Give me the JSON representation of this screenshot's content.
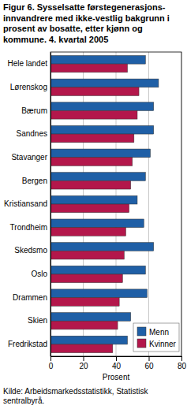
{
  "chart_data": {
    "type": "bar",
    "orientation": "horizontal",
    "title": "Figur 6. Sysselsatte førstegenerasjons-innvandrere med ikke-vestlig bakgrunn i prosent av bosatte, etter kjønn og kommune. 4. kvartal 2005",
    "xlabel": "Prosent",
    "source": "Kilde: Arbeidsmarkedsstatistikk, Statistisk sentralbyrå.",
    "categories": [
      "Hele landet",
      "Lørenskog",
      "Bærum",
      "Sandnes",
      "Stavanger",
      "Bergen",
      "Kristiansand",
      "Trondheim",
      "Skedsmo",
      "Oslo",
      "Drammen",
      "Skien",
      "Fredrikstad"
    ],
    "series": [
      {
        "name": "Menn",
        "color": "#1f5fa6",
        "values": [
          58,
          66,
          63,
          63,
          61,
          58,
          53,
          57,
          63,
          58,
          59,
          49,
          47
        ]
      },
      {
        "name": "Kvinner",
        "color": "#b3174b",
        "values": [
          47,
          54,
          53,
          51,
          50,
          49,
          48,
          46,
          45,
          44,
          42,
          41,
          38
        ]
      }
    ],
    "xlim": [
      0,
      80
    ],
    "xticks": [
      0,
      20,
      40,
      60,
      80
    ],
    "grid": true,
    "legend": "lower right"
  }
}
